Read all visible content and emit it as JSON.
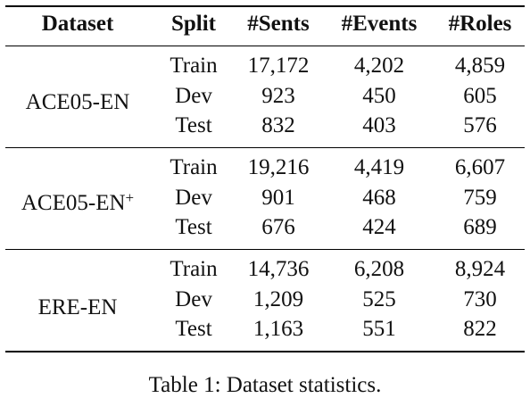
{
  "table": {
    "headers": [
      "Dataset",
      "Split",
      "#Sents",
      "#Events",
      "#Roles"
    ],
    "groups": [
      {
        "dataset": "ACE05-EN",
        "dataset_sup": "",
        "rows": [
          {
            "split": "Train",
            "sents": "17,172",
            "events": "4,202",
            "roles": "4,859"
          },
          {
            "split": "Dev",
            "sents": "923",
            "events": "450",
            "roles": "605"
          },
          {
            "split": "Test",
            "sents": "832",
            "events": "403",
            "roles": "576"
          }
        ]
      },
      {
        "dataset": "ACE05-EN",
        "dataset_sup": "+",
        "rows": [
          {
            "split": "Train",
            "sents": "19,216",
            "events": "4,419",
            "roles": "6,607"
          },
          {
            "split": "Dev",
            "sents": "901",
            "events": "468",
            "roles": "759"
          },
          {
            "split": "Test",
            "sents": "676",
            "events": "424",
            "roles": "689"
          }
        ]
      },
      {
        "dataset": "ERE-EN",
        "dataset_sup": "",
        "rows": [
          {
            "split": "Train",
            "sents": "14,736",
            "events": "6,208",
            "roles": "8,924"
          },
          {
            "split": "Dev",
            "sents": "1,209",
            "events": "525",
            "roles": "730"
          },
          {
            "split": "Test",
            "sents": "1,163",
            "events": "551",
            "roles": "822"
          }
        ]
      }
    ]
  },
  "caption": "Table 1: Dataset statistics."
}
